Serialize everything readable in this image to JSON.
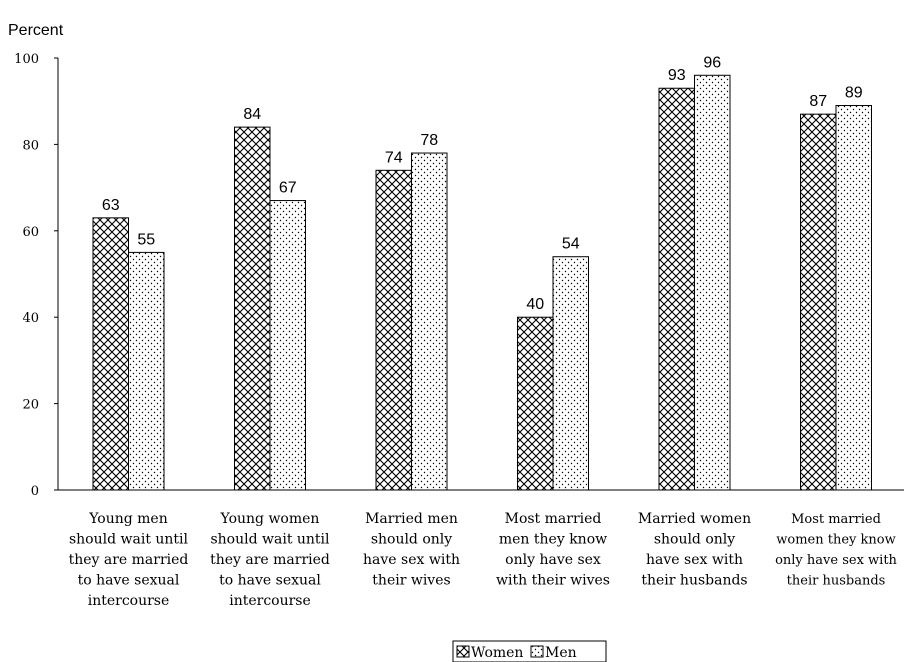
{
  "chart_data": {
    "type": "bar",
    "ylabel": "Percent",
    "ylim": [
      0,
      100
    ],
    "yticks": [
      "0",
      "20",
      "40",
      "60",
      "80",
      "100"
    ],
    "categories": [
      "Young men should wait until they are married to have sexual intercourse",
      "Young women should wait until they are married to have sexual intercourse",
      "Married men should only have sex with their wives",
      "Most married men they know only have sex with their wives",
      "Married women should only have sex with their husbands",
      "Most married women they know only have sex with their husbands"
    ],
    "category_lines": [
      [
        "Young men",
        "should wait until",
        "they are married",
        "to have sexual",
        "intercourse"
      ],
      [
        "Young women",
        "should wait until",
        "they are married",
        "to have sexual",
        "intercourse"
      ],
      [
        "Married men",
        "should only",
        "have sex with",
        "their wives"
      ],
      [
        "Most married",
        "men they know",
        "only have sex",
        "with their wives"
      ],
      [
        "Married women",
        "should only",
        "have sex with",
        "their husbands"
      ],
      [
        "Most married",
        "women they know",
        "only have sex with",
        "their husbands"
      ]
    ],
    "series": [
      {
        "name": "Women",
        "pattern": "crosshatch",
        "values": [
          63,
          84,
          74,
          40,
          93,
          87
        ]
      },
      {
        "name": "Men",
        "pattern": "dots",
        "values": [
          55,
          67,
          78,
          54,
          96,
          89
        ]
      }
    ],
    "legend_position": "bottom-center",
    "grid": false,
    "colors": {
      "bar_stroke": "#000000",
      "background": "#ffffff"
    }
  }
}
